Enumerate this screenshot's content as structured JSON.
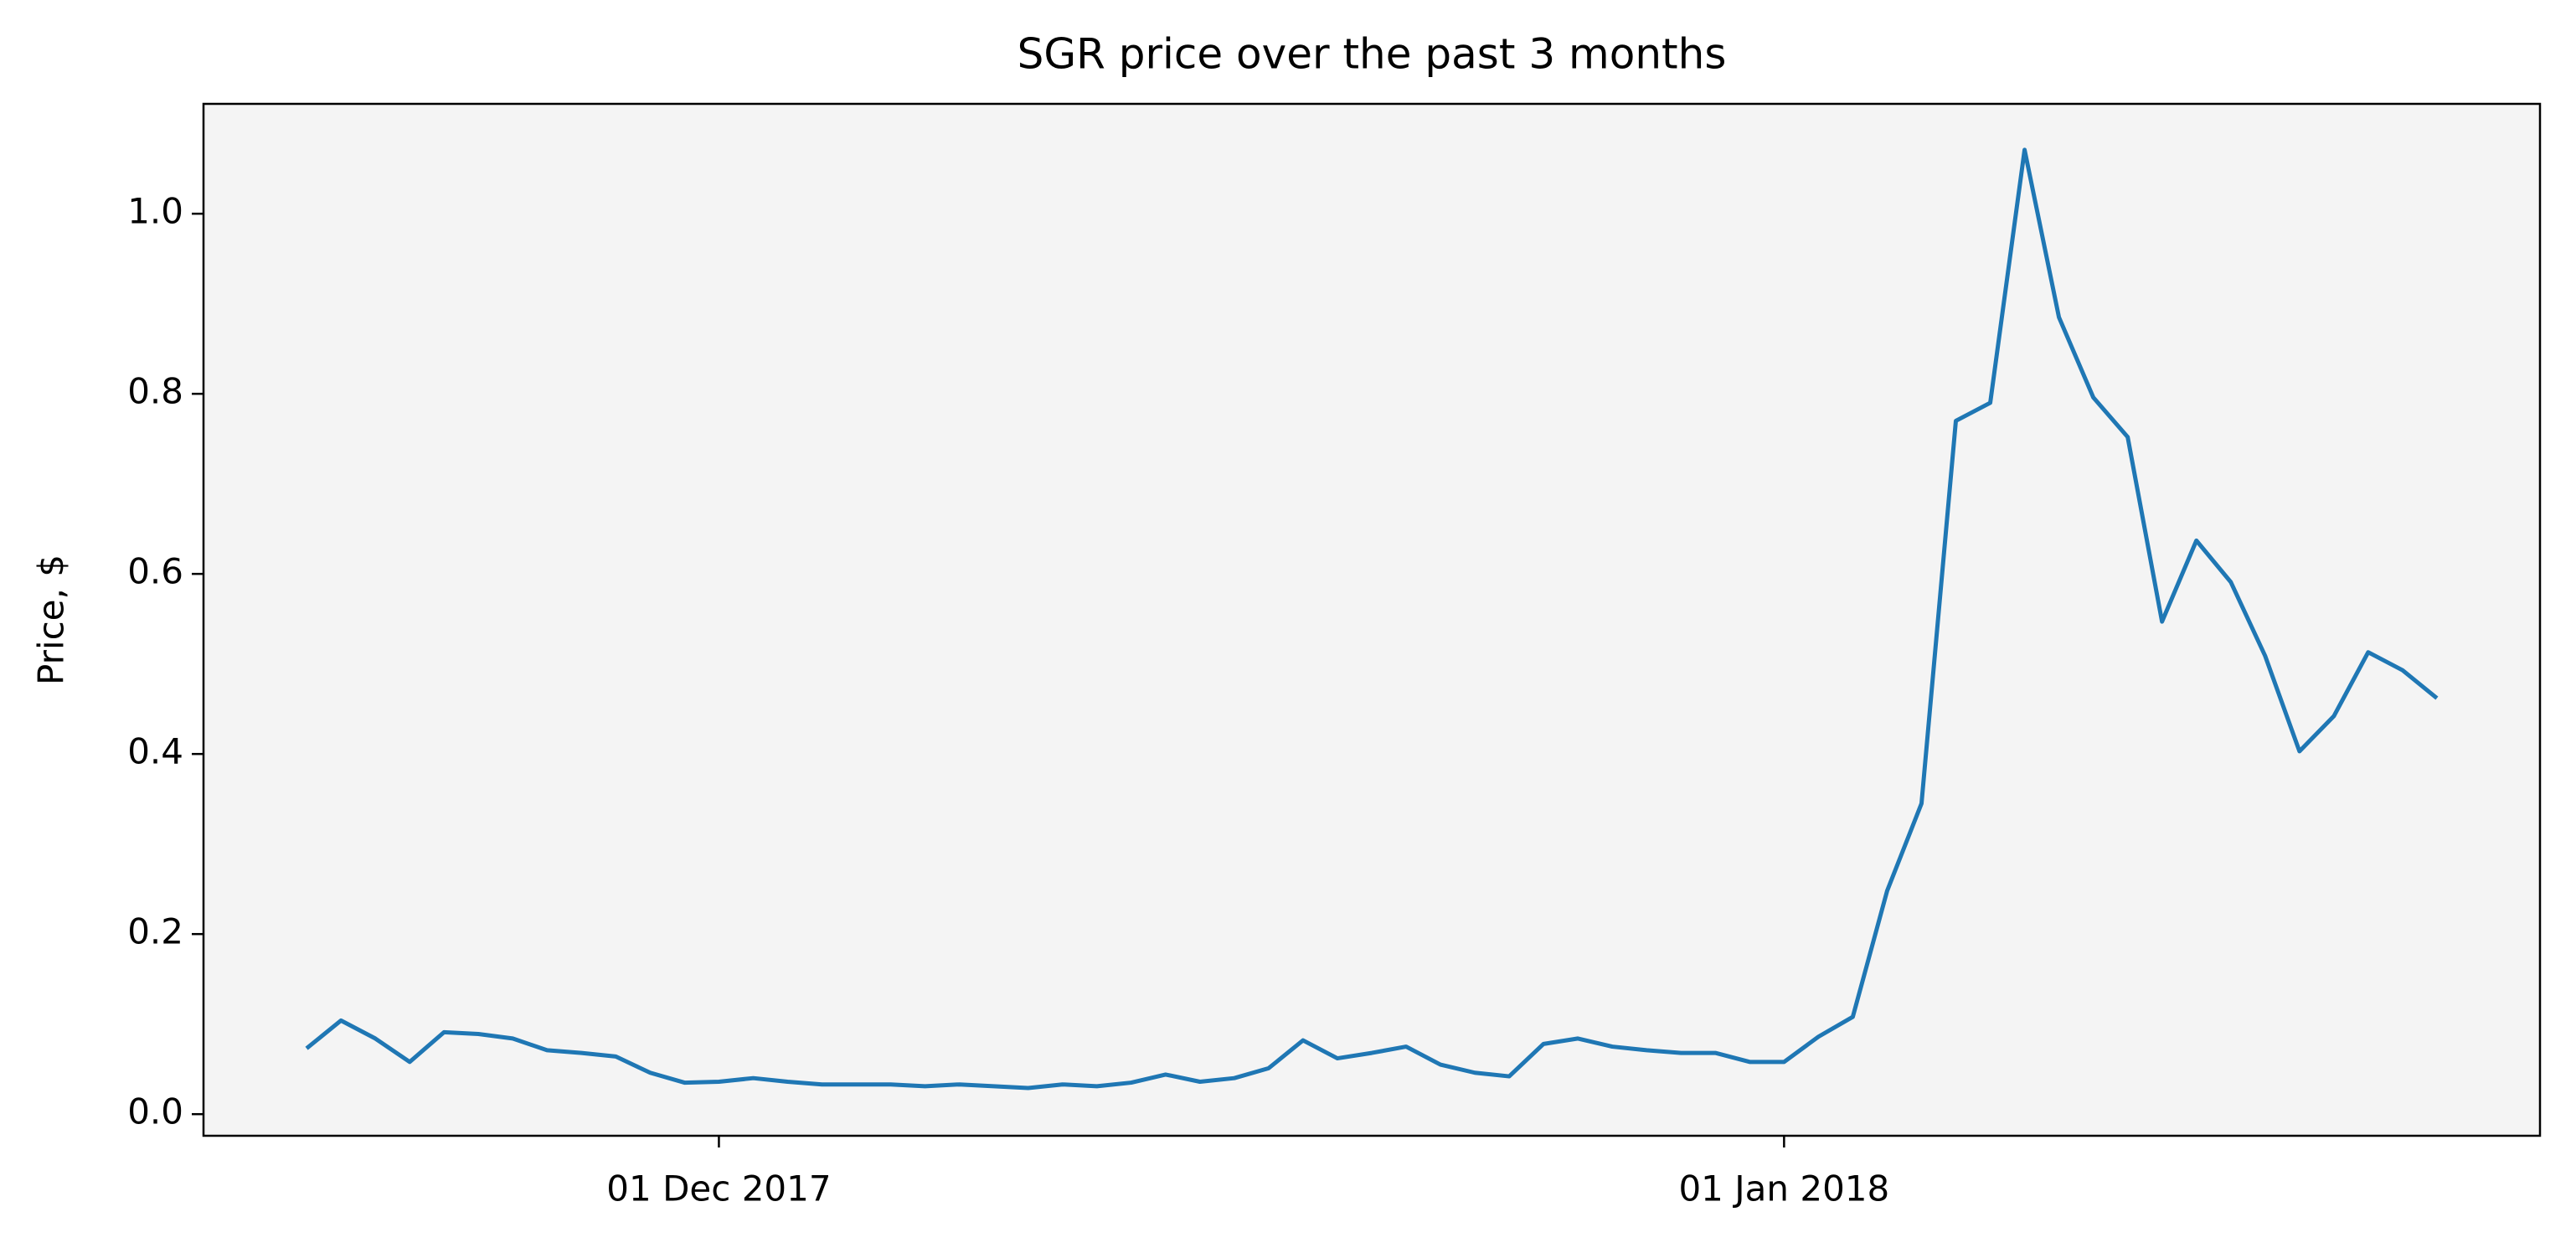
{
  "chart_data": {
    "type": "line",
    "title": "SGR price over the past 3 months",
    "y_label": "Price, $",
    "x": [
      "2017-11-19",
      "2017-11-20",
      "2017-11-21",
      "2017-11-22",
      "2017-11-23",
      "2017-11-24",
      "2017-11-25",
      "2017-11-26",
      "2017-11-27",
      "2017-11-28",
      "2017-11-29",
      "2017-11-30",
      "2017-12-01",
      "2017-12-02",
      "2017-12-03",
      "2017-12-04",
      "2017-12-05",
      "2017-12-06",
      "2017-12-07",
      "2017-12-08",
      "2017-12-09",
      "2017-12-10",
      "2017-12-11",
      "2017-12-12",
      "2017-12-13",
      "2017-12-14",
      "2017-12-15",
      "2017-12-16",
      "2017-12-17",
      "2017-12-18",
      "2017-12-19",
      "2017-12-20",
      "2017-12-21",
      "2017-12-22",
      "2017-12-23",
      "2017-12-24",
      "2017-12-25",
      "2017-12-26",
      "2017-12-27",
      "2017-12-28",
      "2017-12-29",
      "2017-12-30",
      "2017-12-31",
      "2018-01-01",
      "2018-01-02",
      "2018-01-03",
      "2018-01-04",
      "2018-01-05",
      "2018-01-06",
      "2018-01-07",
      "2018-01-08",
      "2018-01-09",
      "2018-01-10",
      "2018-01-11",
      "2018-01-12",
      "2018-01-13",
      "2018-01-14",
      "2018-01-15",
      "2018-01-16",
      "2018-01-17",
      "2018-01-18",
      "2018-01-19",
      "2018-01-20"
    ],
    "values": [
      0.073,
      0.104,
      0.084,
      0.058,
      0.091,
      0.089,
      0.084,
      0.071,
      0.068,
      0.064,
      0.046,
      0.035,
      0.036,
      0.04,
      0.036,
      0.033,
      0.033,
      0.033,
      0.031,
      0.033,
      0.031,
      0.029,
      0.033,
      0.031,
      0.035,
      0.044,
      0.036,
      0.04,
      0.051,
      0.082,
      0.062,
      0.068,
      0.075,
      0.055,
      0.046,
      0.042,
      0.078,
      0.084,
      0.075,
      0.071,
      0.068,
      0.068,
      0.058,
      0.058,
      0.086,
      0.108,
      0.248,
      0.345,
      0.77,
      0.79,
      1.071,
      0.885,
      0.796,
      0.752,
      0.547,
      0.637,
      0.591,
      0.509,
      0.403,
      0.442,
      0.513,
      0.493,
      0.462
    ],
    "color": "#1f77b4",
    "xlim": [
      "2017-11-16",
      "2018-01-23"
    ],
    "xticks": [
      {
        "value": "2017-12-01",
        "label": "01 Dec 2017"
      },
      {
        "value": "2018-01-01",
        "label": "01 Jan 2018"
      }
    ],
    "ylim": [
      -0.024,
      1.122
    ],
    "yticks": [
      {
        "value": 0,
        "label": "0.0"
      },
      0.2,
      0.4,
      0.6,
      0.8,
      {
        "value": 1,
        "label": "1.0"
      }
    ]
  }
}
